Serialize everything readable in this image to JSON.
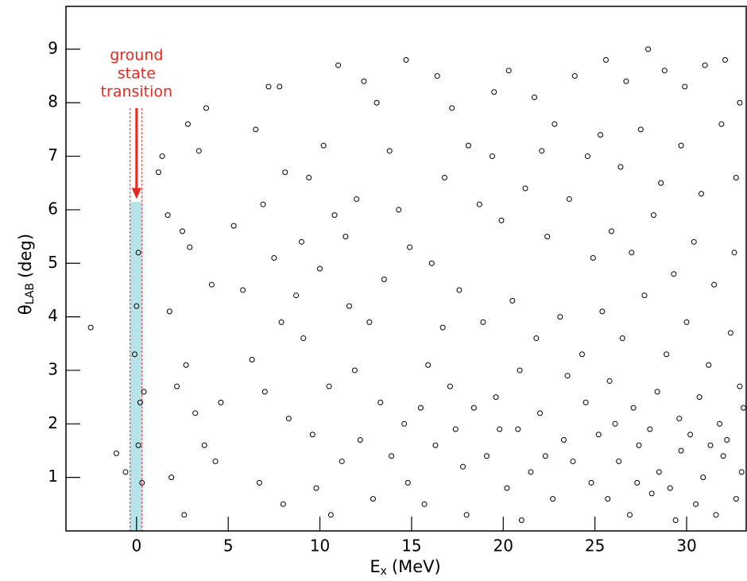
{
  "chart_data": {
    "type": "scatter",
    "xlabel": [
      "E",
      "x",
      "(MeV)"
    ],
    "ylabel": [
      "θ",
      "LAB",
      "(deg)"
    ],
    "annotation": [
      "ground",
      "state",
      "transition"
    ],
    "highlight": {
      "xlim": [
        -0.35,
        0.3
      ],
      "ymax": 6.15,
      "color": "#b7e3ea",
      "line_color": "#e8281e"
    },
    "arrow": {
      "x": 0,
      "y": [
        7.9,
        6.2
      ]
    },
    "xlim": [
      -3.85,
      33.25
    ],
    "ylim": [
      0,
      9.8
    ],
    "xticks": [
      0,
      5,
      10,
      15,
      20,
      25,
      30
    ],
    "yticks": [
      1,
      2,
      3,
      4,
      5,
      6,
      7,
      8,
      9
    ],
    "series": [
      {
        "color": "#000000",
        "x": [
          -2.5,
          -1.1,
          -0.6,
          0.1,
          0,
          -0.1,
          0.2,
          0.1,
          0.3,
          0.4,
          1.4,
          1.2,
          1.7,
          2.8,
          3.8,
          3.4,
          2.5,
          2.9,
          1.8,
          2.2,
          2.7,
          3.2,
          3.7,
          1.9,
          2.6,
          4.3,
          4.6,
          4.1,
          5.3,
          5.8,
          6.5,
          7.2,
          7.8,
          8.1,
          6.9,
          7.5,
          8.7,
          9.4,
          10.2,
          10.8,
          9.1,
          6.3,
          7.0,
          8.3,
          9.6,
          10.5,
          11.2,
          6.7,
          8.0,
          9.8,
          11.6,
          12.4,
          13.1,
          13.8,
          12.0,
          14.3,
          14.9,
          13.5,
          12.7,
          11.9,
          13.3,
          14.6,
          12.2,
          13.9,
          14.8,
          12.9,
          10.6,
          11.0,
          14.7,
          9.0,
          7.9,
          10.0,
          11.4,
          15.5,
          16.4,
          17.2,
          18.1,
          19.5,
          20.3,
          21.7,
          22.8,
          23.9,
          24.6,
          16.8,
          18.7,
          19.9,
          21.2,
          22.4,
          23.6,
          24.9,
          16.1,
          17.6,
          18.9,
          20.5,
          21.8,
          23.1,
          24.3,
          15.9,
          17.1,
          18.4,
          19.6,
          20.8,
          22.0,
          23.3,
          24.5,
          16.3,
          17.8,
          19.1,
          20.2,
          21.5,
          22.7,
          23.8,
          24.8,
          15.7,
          18.0,
          21.0,
          19.4,
          22.1,
          16.7,
          20.9,
          23.5,
          17.4,
          19.8,
          22.3,
          25.6,
          26.7,
          27.9,
          28.8,
          29.9,
          31.0,
          32.1,
          32.9,
          25.3,
          26.4,
          27.5,
          28.6,
          29.7,
          30.8,
          31.9,
          32.7,
          25.9,
          27.0,
          28.2,
          29.3,
          30.4,
          31.5,
          32.6,
          25.4,
          26.5,
          27.7,
          28.9,
          30.0,
          31.2,
          32.4,
          25.8,
          27.1,
          28.4,
          29.6,
          30.7,
          31.8,
          32.9,
          25.2,
          26.3,
          27.4,
          28.5,
          29.7,
          30.9,
          32.0,
          33.0,
          25.7,
          26.9,
          28.1,
          29.4,
          30.5,
          31.6,
          32.7,
          26.1,
          28.0,
          30.2,
          32.2,
          27.3,
          29.1,
          31.3,
          33.1
        ],
        "values": [
          3.8,
          1.45,
          1.1,
          5.2,
          4.2,
          3.3,
          2.4,
          1.6,
          0.9,
          2.6,
          7.0,
          6.7,
          5.9,
          7.6,
          7.9,
          7.1,
          5.6,
          5.3,
          4.1,
          2.7,
          3.1,
          2.2,
          1.6,
          1.0,
          0.3,
          1.3,
          2.4,
          4.6,
          5.7,
          4.5,
          7.5,
          8.3,
          8.3,
          6.7,
          6.1,
          5.1,
          4.4,
          6.6,
          7.2,
          5.9,
          3.6,
          3.2,
          2.6,
          2.1,
          1.8,
          2.7,
          1.3,
          0.9,
          0.5,
          0.8,
          4.2,
          8.4,
          8.0,
          7.1,
          6.2,
          6.0,
          5.3,
          4.7,
          3.9,
          3.0,
          2.4,
          2.0,
          1.7,
          1.4,
          0.9,
          0.6,
          0.3,
          8.7,
          8.8,
          5.4,
          3.9,
          4.9,
          5.5,
          2.3,
          8.5,
          7.9,
          7.2,
          8.2,
          8.6,
          8.1,
          7.6,
          8.5,
          7.0,
          6.6,
          6.1,
          5.8,
          6.4,
          5.5,
          6.2,
          5.1,
          5.0,
          4.5,
          3.9,
          4.3,
          3.6,
          4.0,
          3.3,
          3.1,
          2.7,
          2.3,
          2.5,
          1.9,
          2.2,
          1.7,
          2.4,
          1.6,
          1.2,
          1.4,
          0.8,
          1.1,
          0.6,
          1.3,
          0.9,
          0.5,
          0.3,
          0.2,
          7.0,
          7.1,
          3.8,
          3.0,
          2.9,
          1.9,
          1.9,
          1.4,
          8.8,
          8.4,
          9.0,
          8.6,
          8.3,
          8.7,
          8.8,
          8.0,
          7.4,
          6.8,
          7.5,
          6.5,
          7.2,
          6.3,
          7.6,
          6.6,
          5.6,
          5.2,
          5.9,
          4.8,
          5.4,
          4.6,
          5.2,
          4.1,
          3.6,
          4.4,
          3.3,
          3.9,
          3.1,
          3.7,
          2.8,
          2.3,
          2.6,
          2.1,
          2.5,
          2.0,
          2.7,
          1.8,
          1.3,
          1.6,
          1.1,
          1.5,
          1.0,
          1.4,
          1.1,
          0.6,
          0.3,
          0.7,
          0.2,
          0.5,
          0.3,
          0.6,
          2.0,
          1.9,
          1.8,
          1.7,
          0.9,
          0.8,
          1.6,
          2.3
        ]
      }
    ]
  }
}
